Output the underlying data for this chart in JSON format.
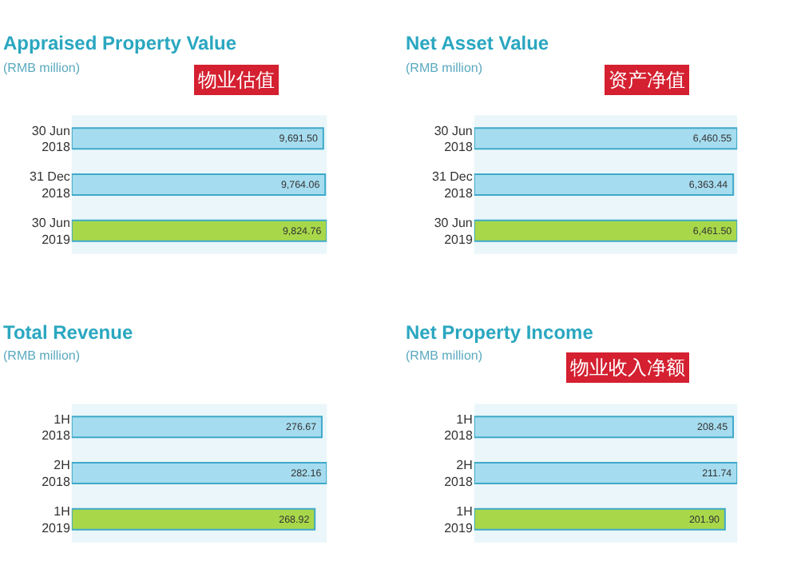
{
  "chart_data": [
    {
      "type": "bar",
      "orientation": "horizontal",
      "title": "Appraised Property Value",
      "subtitle": "(RMB million)",
      "annotations": [
        "物业估值"
      ],
      "categories": [
        "30 Jun\n2018",
        "31 Dec\n2018",
        "30 Jun\n2019"
      ],
      "values": [
        9691.5,
        9764.06,
        9824.76
      ],
      "value_labels": [
        "9,691.50",
        "9,764.06",
        "9,824.76"
      ],
      "colors": [
        "#a6dcef",
        "#a6dcef",
        "#a8d84a"
      ]
    },
    {
      "type": "bar",
      "orientation": "horizontal",
      "title": "Net Asset Value",
      "subtitle": "(RMB million)",
      "annotations": [
        "资产净值"
      ],
      "categories": [
        "30 Jun\n2018",
        "31 Dec\n2018",
        "30 Jun\n2019"
      ],
      "values": [
        6460.55,
        6363.44,
        6461.5
      ],
      "value_labels": [
        "6,460.55",
        "6,363.44",
        "6,461.50"
      ],
      "colors": [
        "#a6dcef",
        "#a6dcef",
        "#a8d84a"
      ]
    },
    {
      "type": "bar",
      "orientation": "horizontal",
      "title": "Total Revenue",
      "subtitle": "(RMB million)",
      "categories": [
        "1H\n2018",
        "2H\n2018",
        "1H\n2019"
      ],
      "values": [
        276.67,
        282.16,
        268.92
      ],
      "value_labels": [
        "276.67",
        "282.16",
        "268.92"
      ],
      "colors": [
        "#a6dcef",
        "#a6dcef",
        "#a8d84a"
      ]
    },
    {
      "type": "bar",
      "orientation": "horizontal",
      "title": "Net Property Income",
      "subtitle": "(RMB million)",
      "annotations": [
        "物业收入净额"
      ],
      "categories": [
        "1H\n2018",
        "2H\n2018",
        "1H\n2019"
      ],
      "values": [
        208.45,
        211.74,
        201.9
      ],
      "value_labels": [
        "208.45",
        "211.74",
        "201.90"
      ],
      "colors": [
        "#a6dcef",
        "#a6dcef",
        "#a8d84a"
      ]
    }
  ]
}
